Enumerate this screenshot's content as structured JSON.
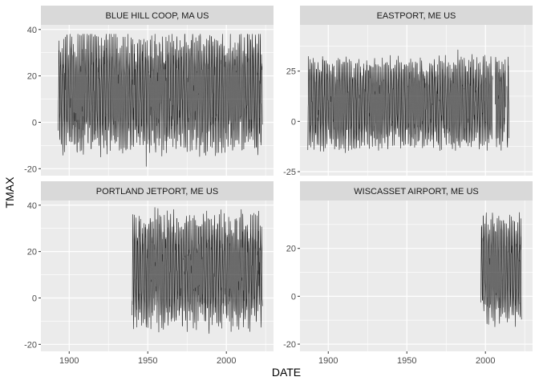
{
  "chart_data": {
    "type": "line",
    "facet_layout": "2x2",
    "xlabel": "DATE",
    "ylabel": "TMAX",
    "x_ticks": [
      1900,
      1950,
      2000
    ],
    "x_range": [
      1882,
      2030
    ],
    "line_color": "#000000",
    "panel_background": "#ebebeb",
    "strip_background": "#d9d9d9",
    "grid_color": "#ffffff",
    "grid": true,
    "panels": [
      {
        "title": "BLUE HILL COOP, MA US",
        "y_ticks": [
          -20,
          0,
          20,
          40
        ],
        "ylim": [
          -23,
          42
        ],
        "series": {
          "x_start": 1893,
          "x_end": 2023,
          "mean": 13,
          "amplitude": 20,
          "noise": 5,
          "min": -19,
          "max": 38,
          "gaps": []
        }
      },
      {
        "title": "EASTPORT, ME US",
        "y_ticks": [
          -25,
          0,
          25
        ],
        "ylim": [
          -27,
          48
        ],
        "series": {
          "x_start": 1887,
          "x_end": 2015,
          "mean": 9,
          "amplitude": 18,
          "noise": 4,
          "min": -23,
          "max": 43,
          "gaps": [
            [
              2004.6,
              2006.2
            ],
            [
              2012.8,
              2013.6
            ]
          ]
        }
      },
      {
        "title": "PORTLAND JETPORT, ME US",
        "y_ticks": [
          -20,
          0,
          20,
          40
        ],
        "ylim": [
          -23,
          42
        ],
        "series": {
          "x_start": 1940,
          "x_end": 2023,
          "mean": 12,
          "amplitude": 19,
          "noise": 5,
          "min": -19,
          "max": 39,
          "gaps": []
        }
      },
      {
        "title": "WISCASSET AIRPORT, ME US",
        "y_ticks": [
          -20,
          0,
          20
        ],
        "ylim": [
          -23,
          40
        ],
        "series": {
          "x_start": 1997,
          "x_end": 2023,
          "mean": 11,
          "amplitude": 18,
          "noise": 4,
          "min": -19,
          "max": 35,
          "gaps": []
        }
      }
    ]
  }
}
